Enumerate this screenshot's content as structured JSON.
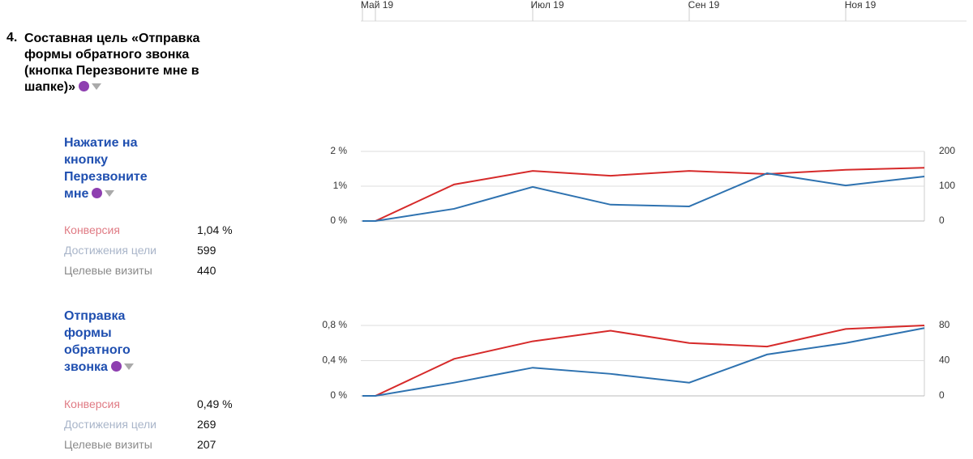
{
  "timeline": {
    "categories": [
      "Май 19",
      null,
      null,
      "Июл 19",
      null,
      "Сен 19",
      null,
      "Ноя 19",
      null
    ]
  },
  "goal": {
    "number": "4.",
    "title": "Составная цель «Отправка формы обратного звонка (кнопка Перезвоните мне в шапке)»"
  },
  "steps": [
    {
      "title": "Нажатие на кнопку Перезвоните мне",
      "metrics": [
        {
          "label": "Конверсия",
          "value": "1,04 %"
        },
        {
          "label": "Достижения цели",
          "value": "599"
        },
        {
          "label": "Целевые визиты",
          "value": "440"
        }
      ]
    },
    {
      "title": "Отправка формы обратного звонка",
      "metrics": [
        {
          "label": "Конверсия",
          "value": "0,49 %"
        },
        {
          "label": "Достижения цели",
          "value": "269"
        },
        {
          "label": "Целевые визиты",
          "value": "207"
        }
      ]
    }
  ],
  "chart_data": [
    {
      "type": "line",
      "ylim": [
        0,
        2
      ],
      "yticks": [
        {
          "value": 0,
          "label": "0 %"
        },
        {
          "value": 1,
          "label": "1%"
        },
        {
          "value": 2,
          "label": "2 %"
        }
      ],
      "y2lim": [
        0,
        200
      ],
      "y2ticks": [
        0,
        100,
        200
      ],
      "grid": true,
      "series": [
        {
          "color": "#d62a2a",
          "values": [
            0,
            0,
            1.05,
            1.44,
            1.3,
            1.44,
            1.35,
            1.47,
            1.53
          ]
        },
        {
          "color": "#2e72b0",
          "axis": "y2",
          "values": [
            0,
            0,
            35,
            98,
            47,
            42,
            137,
            102,
            128
          ]
        }
      ]
    },
    {
      "type": "line",
      "ylim": [
        0,
        0.8
      ],
      "yticks": [
        {
          "value": 0,
          "label": "0 %"
        },
        {
          "value": 0.4,
          "label": "0,4 %"
        },
        {
          "value": 0.8,
          "label": "0,8 %"
        }
      ],
      "y2lim": [
        0,
        80
      ],
      "y2ticks": [
        0,
        40,
        80
      ],
      "grid": true,
      "series": [
        {
          "color": "#d62a2a",
          "values": [
            0,
            0,
            0.42,
            0.62,
            0.74,
            0.6,
            0.56,
            0.76,
            0.8
          ]
        },
        {
          "color": "#2e72b0",
          "axis": "y2",
          "values": [
            0,
            0,
            15,
            32,
            25,
            15,
            47,
            60,
            77
          ]
        }
      ]
    }
  ]
}
